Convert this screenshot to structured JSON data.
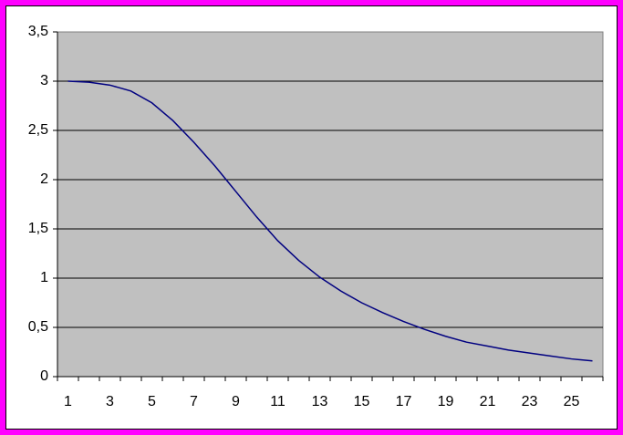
{
  "chart_data": {
    "type": "line",
    "categories": [
      1,
      null,
      3,
      null,
      5,
      null,
      7,
      null,
      9,
      null,
      11,
      null,
      13,
      null,
      15,
      null,
      17,
      null,
      19,
      null,
      21,
      null,
      23,
      null,
      25,
      null
    ],
    "series": [
      {
        "color": "#000080",
        "values": [
          3.0,
          2.99,
          2.96,
          2.9,
          2.78,
          2.6,
          2.38,
          2.14,
          1.88,
          1.62,
          1.38,
          1.18,
          1.01,
          0.87,
          0.75,
          0.65,
          0.56,
          0.48,
          0.41,
          0.35,
          0.31,
          0.27,
          0.24,
          0.21,
          0.18,
          0.16
        ]
      }
    ],
    "ylim": [
      0,
      3.5
    ],
    "yticks": [
      0,
      {
        "value": 0.5,
        "label": "0,5"
      },
      1,
      {
        "value": 1.5,
        "label": "1,5"
      },
      2,
      {
        "value": 2.5,
        "label": "2,5"
      },
      3,
      {
        "value": 3.5,
        "label": "3,5"
      }
    ],
    "grid": true,
    "plot_color": "#c0c0c0"
  }
}
